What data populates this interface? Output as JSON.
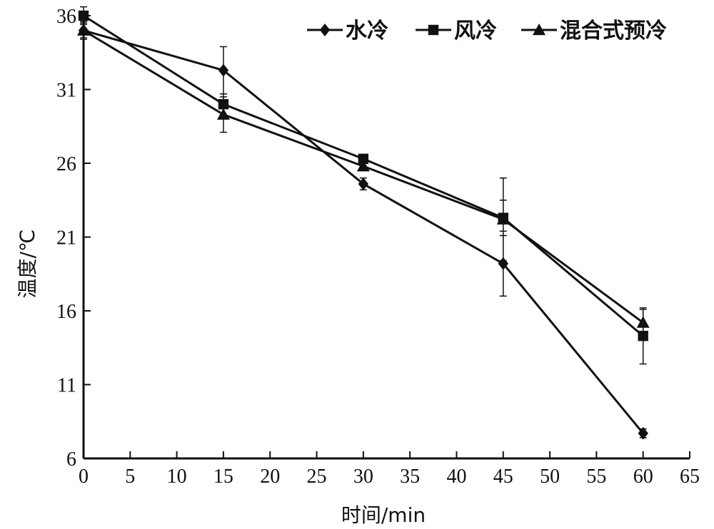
{
  "chart_data": {
    "type": "line",
    "title": "",
    "xlabel": "时间/min",
    "ylabel": "温度/℃",
    "xlim": [
      0,
      65
    ],
    "ylim": [
      6,
      36
    ],
    "x_ticks": [
      "0",
      "5",
      "10",
      "15",
      "20",
      "25",
      "30",
      "35",
      "40",
      "45",
      "50",
      "55",
      "60",
      "65"
    ],
    "y_ticks": [
      "6",
      "11",
      "16",
      "21",
      "26",
      "31",
      "36"
    ],
    "x": [
      0,
      15,
      30,
      45,
      60
    ],
    "grid": false,
    "legend_position": "top-right",
    "series": [
      {
        "name": "水冷",
        "marker": "diamond",
        "color": "#111111",
        "values": [
          35.0,
          32.3,
          24.6,
          19.2,
          7.7
        ],
        "errors": [
          0.6,
          1.6,
          0.4,
          2.2,
          0.3
        ]
      },
      {
        "name": "风冷",
        "marker": "square",
        "color": "#111111",
        "values": [
          36.0,
          30.0,
          26.3,
          22.3,
          14.3
        ],
        "errors": [
          0.6,
          0.7,
          0.3,
          1.2,
          1.9
        ]
      },
      {
        "name": "混合式预冷",
        "marker": "triangle",
        "color": "#111111",
        "values": [
          35.0,
          29.3,
          25.8,
          22.2,
          15.2
        ],
        "errors": [
          0.5,
          1.2,
          0.3,
          2.8,
          0.9
        ]
      }
    ]
  }
}
